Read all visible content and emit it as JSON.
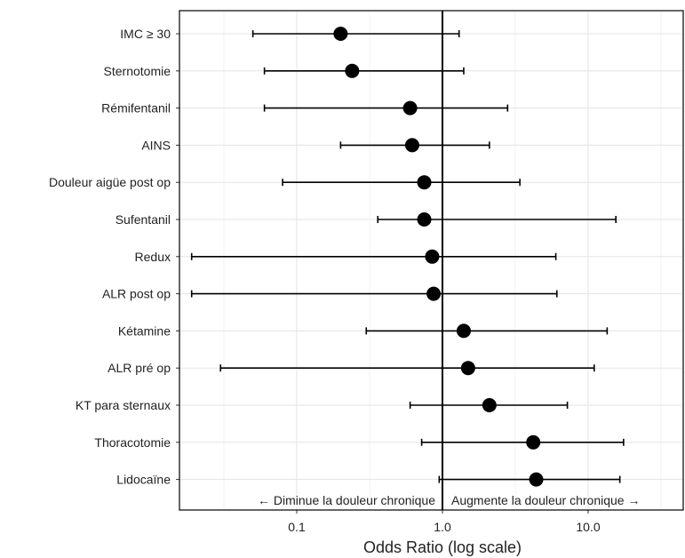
{
  "chart_data": {
    "type": "scatter",
    "subtype": "forest-plot",
    "title": "",
    "xlabel": "Odds Ratio (log scale)",
    "ylabel": "",
    "x_scale": "log",
    "xlim": [
      0.015,
      50
    ],
    "x_ticks": [
      {
        "value": 0.1,
        "label": "0.1"
      },
      {
        "value": 1,
        "label": "1.0"
      },
      {
        "value": 10,
        "label": "10.0"
      }
    ],
    "reference_line": 1,
    "grid": true,
    "rows": [
      {
        "label": "IMC ≥ 30",
        "or": 0.2,
        "low": 0.05,
        "high": 1.3
      },
      {
        "label": "Sternotomie",
        "or": 0.24,
        "low": 0.06,
        "high": 1.4
      },
      {
        "label": "Rémifentanil",
        "or": 0.6,
        "low": 0.06,
        "high": 2.8
      },
      {
        "label": "AINS",
        "or": 0.62,
        "low": 0.2,
        "high": 2.1
      },
      {
        "label": "Douleur aigüe post op",
        "or": 0.75,
        "low": 0.08,
        "high": 3.4
      },
      {
        "label": "Sufentanil",
        "or": 0.75,
        "low": 0.36,
        "high": 15.5
      },
      {
        "label": "Redux",
        "or": 0.85,
        "low": 0.019,
        "high": 6
      },
      {
        "label": "ALR post op",
        "or": 0.87,
        "low": 0.019,
        "high": 6.1
      },
      {
        "label": "Kétamine",
        "or": 1.4,
        "low": 0.3,
        "high": 13.5
      },
      {
        "label": "ALR pré op",
        "or": 1.5,
        "low": 0.03,
        "high": 11
      },
      {
        "label": "KT para sternaux",
        "or": 2.1,
        "low": 0.6,
        "high": 7.2
      },
      {
        "label": "Thoracotomie",
        "or": 4.2,
        "low": 0.72,
        "high": 17.5
      },
      {
        "label": "Lidocaïne",
        "or": 4.4,
        "low": 0.95,
        "high": 16.5
      }
    ],
    "annotations": {
      "left": "← Diminue la douleur chronique",
      "right": "Augmente la douleur chronique →"
    }
  }
}
